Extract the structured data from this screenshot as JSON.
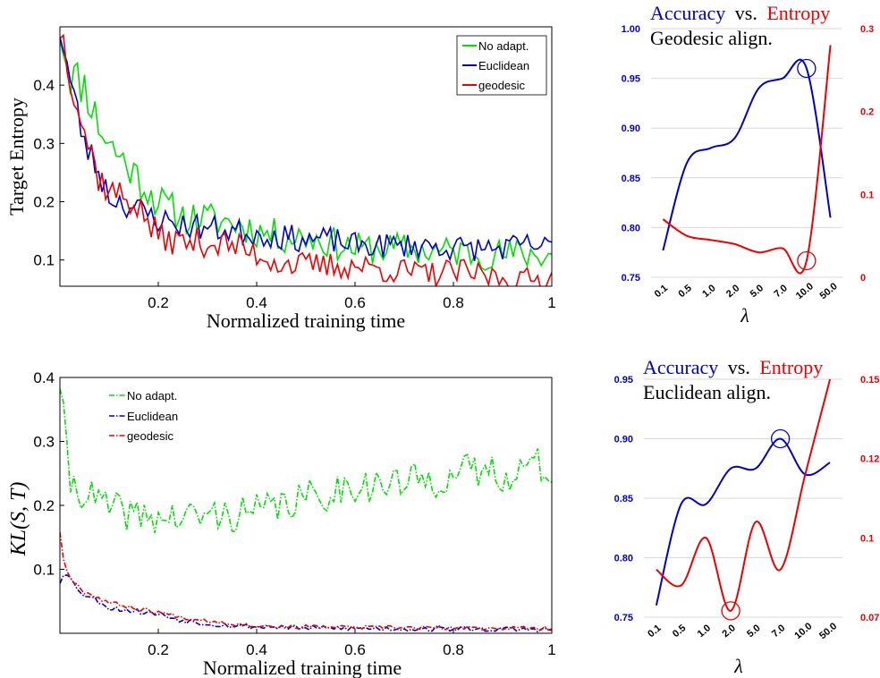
{
  "colors": {
    "green": "#00e000",
    "blue": "#0000cc",
    "red": "#ee0000",
    "axis": "#000000",
    "grid": "#d9d9d9"
  },
  "chart_data": [
    {
      "type": "line",
      "ylabel": "Target Entropy",
      "xlabel": "Normalized training time",
      "xlim": [
        0.0,
        1.0
      ],
      "ylim": [
        0.055,
        0.5
      ],
      "xticks": [
        "0.2",
        "0.4",
        "0.6",
        "0.8",
        "1"
      ],
      "xtick_values": [
        0.2,
        0.4,
        0.6,
        0.8,
        1.0
      ],
      "yticks": [
        "0.1",
        "0.2",
        "0.3",
        "0.4"
      ],
      "ytick_values": [
        0.1,
        0.2,
        0.3,
        0.4
      ],
      "legend_position": "top-right",
      "series": [
        {
          "name": "No adapt.",
          "style": "solid",
          "x": [
            0.0,
            0.02,
            0.05,
            0.08,
            0.1,
            0.15,
            0.2,
            0.25,
            0.3,
            0.35,
            0.4,
            0.45,
            0.5,
            0.55,
            0.6,
            0.65,
            0.7,
            0.75,
            0.8,
            0.85,
            0.9,
            0.95,
            1.0
          ],
          "y": [
            0.5,
            0.42,
            0.4,
            0.33,
            0.3,
            0.25,
            0.2,
            0.175,
            0.17,
            0.165,
            0.15,
            0.14,
            0.14,
            0.13,
            0.12,
            0.12,
            0.12,
            0.115,
            0.115,
            0.11,
            0.11,
            0.11,
            0.11
          ]
        },
        {
          "name": "Euclidean",
          "style": "solid",
          "x": [
            0.0,
            0.02,
            0.05,
            0.08,
            0.1,
            0.15,
            0.2,
            0.25,
            0.3,
            0.35,
            0.4,
            0.45,
            0.5,
            0.55,
            0.6,
            0.65,
            0.7,
            0.75,
            0.8,
            0.85,
            0.9,
            0.95,
            1.0
          ],
          "y": [
            0.5,
            0.41,
            0.3,
            0.25,
            0.21,
            0.19,
            0.17,
            0.16,
            0.155,
            0.15,
            0.145,
            0.14,
            0.135,
            0.135,
            0.125,
            0.125,
            0.125,
            0.125,
            0.12,
            0.12,
            0.12,
            0.125,
            0.12
          ]
        },
        {
          "name": "geodesic",
          "style": "solid",
          "x": [
            0.0,
            0.02,
            0.05,
            0.08,
            0.1,
            0.15,
            0.2,
            0.25,
            0.3,
            0.35,
            0.4,
            0.45,
            0.5,
            0.55,
            0.6,
            0.65,
            0.7,
            0.75,
            0.8,
            0.85,
            0.9,
            0.95,
            1.0
          ],
          "y": [
            0.5,
            0.43,
            0.32,
            0.24,
            0.22,
            0.2,
            0.14,
            0.13,
            0.13,
            0.125,
            0.11,
            0.095,
            0.09,
            0.09,
            0.09,
            0.085,
            0.08,
            0.075,
            0.08,
            0.075,
            0.07,
            0.065,
            0.07
          ]
        }
      ]
    },
    {
      "type": "line",
      "ylabel": "KL(S, T)",
      "xlabel": "Normalized training time",
      "xlim": [
        0.0,
        1.0
      ],
      "ylim": [
        0.0,
        0.4
      ],
      "xticks": [
        "0.2",
        "0.4",
        "0.6",
        "0.8",
        "1"
      ],
      "xtick_values": [
        0.2,
        0.4,
        0.6,
        0.8,
        1.0
      ],
      "yticks": [
        "0.1",
        "0.2",
        "0.3",
        "0.4"
      ],
      "ytick_values": [
        0.1,
        0.2,
        0.3,
        0.4
      ],
      "legend_position": "top-left",
      "series": [
        {
          "name": "No adapt.",
          "style": "dashdot",
          "x": [
            0.0,
            0.01,
            0.02,
            0.04,
            0.07,
            0.1,
            0.15,
            0.2,
            0.25,
            0.3,
            0.35,
            0.4,
            0.45,
            0.5,
            0.55,
            0.6,
            0.65,
            0.7,
            0.75,
            0.8,
            0.85,
            0.9,
            0.95,
            1.0
          ],
          "y": [
            0.4,
            0.3,
            0.24,
            0.225,
            0.21,
            0.195,
            0.185,
            0.18,
            0.18,
            0.185,
            0.185,
            0.19,
            0.2,
            0.21,
            0.22,
            0.235,
            0.23,
            0.235,
            0.24,
            0.245,
            0.255,
            0.25,
            0.26,
            0.26
          ]
        },
        {
          "name": "Euclidean",
          "style": "dashdot",
          "x": [
            0.0,
            0.01,
            0.03,
            0.05,
            0.08,
            0.1,
            0.15,
            0.2,
            0.25,
            0.3,
            0.35,
            0.4,
            0.45,
            0.5,
            0.6,
            0.7,
            0.8,
            0.9,
            1.0
          ],
          "y": [
            0.08,
            0.1,
            0.075,
            0.06,
            0.05,
            0.04,
            0.035,
            0.03,
            0.02,
            0.015,
            0.012,
            0.01,
            0.01,
            0.008,
            0.008,
            0.007,
            0.007,
            0.006,
            0.006
          ]
        },
        {
          "name": "geodesic",
          "style": "dashdot",
          "x": [
            0.0,
            0.01,
            0.03,
            0.05,
            0.08,
            0.1,
            0.15,
            0.2,
            0.25,
            0.3,
            0.35,
            0.4,
            0.45,
            0.5,
            0.6,
            0.7,
            0.8,
            0.9,
            1.0
          ],
          "y": [
            0.16,
            0.1,
            0.08,
            0.065,
            0.055,
            0.048,
            0.04,
            0.033,
            0.025,
            0.02,
            0.015,
            0.012,
            0.01,
            0.01,
            0.009,
            0.009,
            0.008,
            0.008,
            0.008
          ]
        }
      ]
    },
    {
      "type": "line",
      "title_parts": [
        "Accuracy",
        "vs.",
        "Entropy"
      ],
      "subtitle": "Geodesic align.",
      "xlabel": "λ",
      "categories": [
        "0.1",
        "0.5",
        "1.0",
        "2.0",
        "5.0",
        "7.0",
        "10.0",
        "50.0"
      ],
      "ylim_left": [
        0.75,
        1.0
      ],
      "ylim_right": [
        0.0,
        0.3
      ],
      "yticks_left": [
        "0.75",
        "0.80",
        "0.85",
        "0.90",
        "0.95",
        "1.00"
      ],
      "yticks_right": [
        "0",
        "0.1",
        "0.2",
        "0.3"
      ],
      "series": [
        {
          "name": "Accuracy",
          "axis": "left",
          "values": [
            0.777,
            0.865,
            0.88,
            0.89,
            0.94,
            0.95,
            0.96,
            0.81
          ],
          "highlight_index": 6
        },
        {
          "name": "Entropy",
          "axis": "right",
          "values": [
            0.07,
            0.05,
            0.045,
            0.04,
            0.03,
            0.035,
            0.02,
            0.28
          ],
          "highlight_index": 6
        }
      ]
    },
    {
      "type": "line",
      "title_parts": [
        "Accuracy",
        "vs.",
        "Entropy"
      ],
      "subtitle": "Euclidean align.",
      "xlabel": "λ",
      "categories": [
        "0.1",
        "0.5",
        "1.0",
        "2.0",
        "5.0",
        "7.0",
        "10.0",
        "50.0"
      ],
      "ylim_left": [
        0.75,
        0.95
      ],
      "ylim_right": [
        0.075,
        0.15
      ],
      "yticks_left": [
        "0.75",
        "0.80",
        "0.85",
        "0.90",
        "0.95"
      ],
      "yticks_right": [
        "0.075",
        "0.1",
        "0.125",
        "0.15"
      ],
      "series": [
        {
          "name": "Accuracy",
          "axis": "left",
          "values": [
            0.76,
            0.845,
            0.845,
            0.875,
            0.875,
            0.9,
            0.87,
            0.88
          ],
          "highlight_index": 5
        },
        {
          "name": "Entropy",
          "axis": "right",
          "values": [
            0.09,
            0.085,
            0.1,
            0.077,
            0.105,
            0.09,
            0.12,
            0.15
          ],
          "highlight_index": 3
        }
      ]
    }
  ]
}
